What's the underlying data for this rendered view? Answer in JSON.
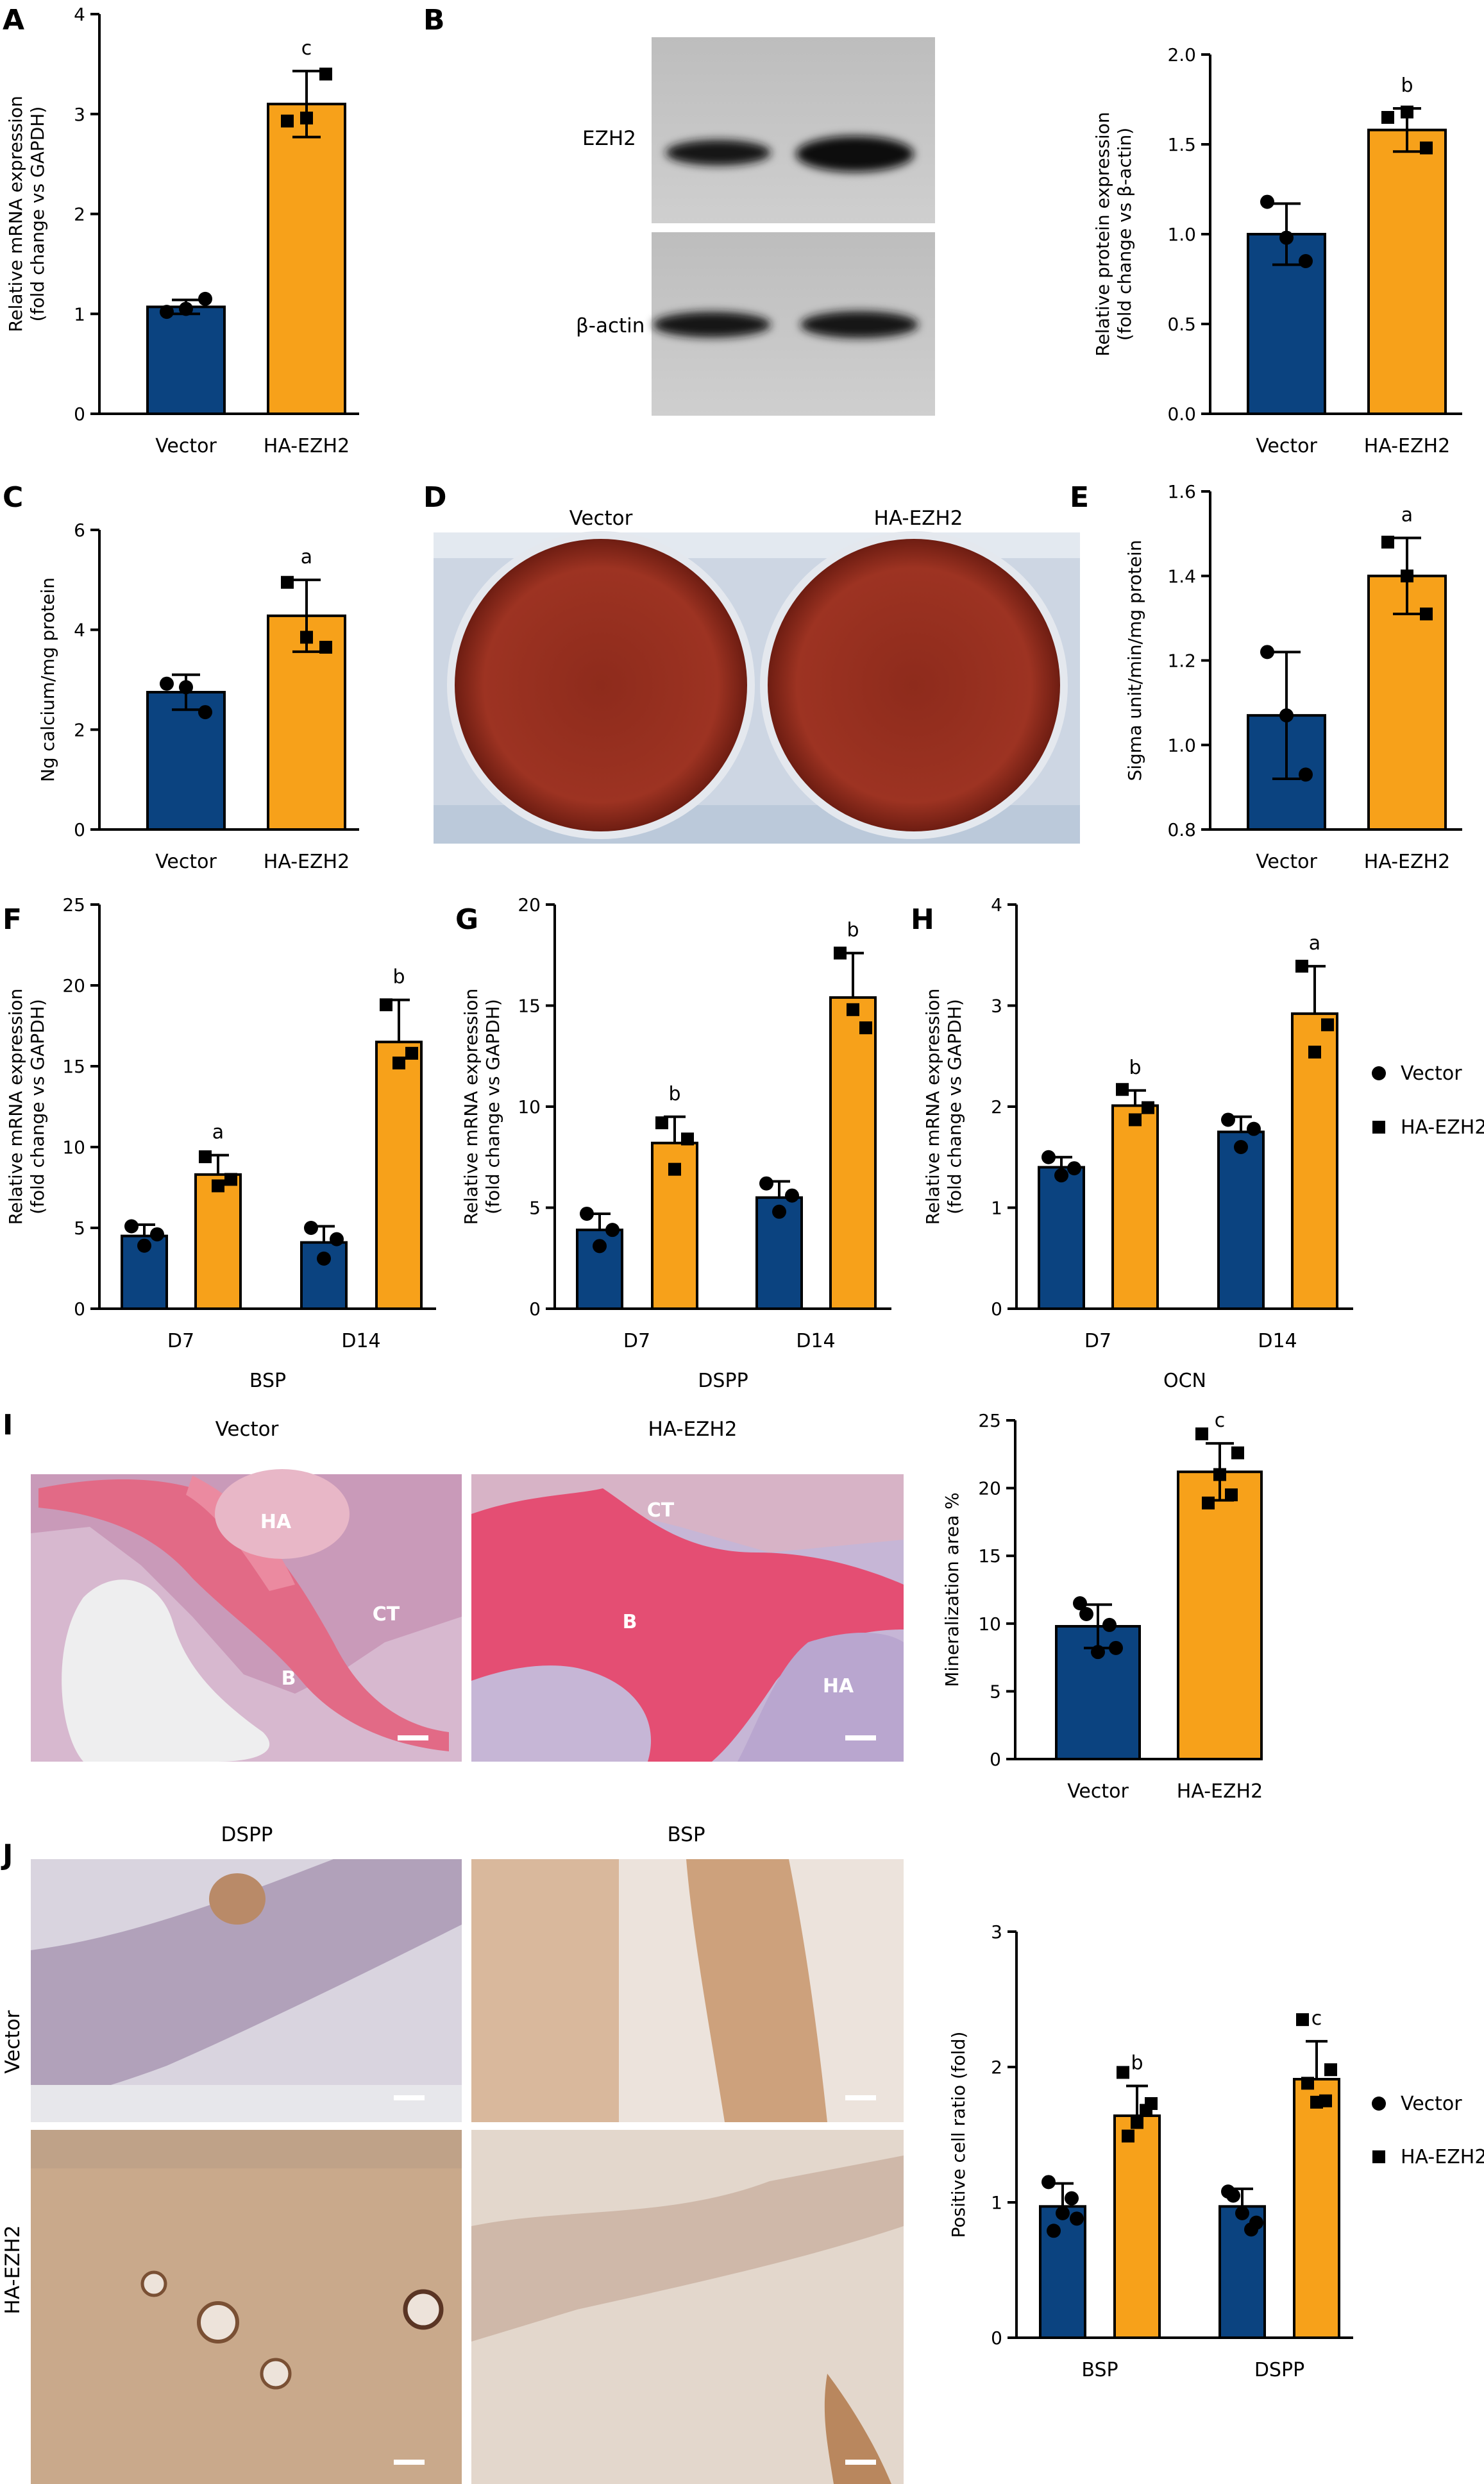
{
  "figure": {
    "labels": {
      "A": "A",
      "B": "B",
      "C": "C",
      "D": "D",
      "E": "E",
      "F": "F",
      "G": "G",
      "H": "H",
      "I": "I",
      "J": "J"
    },
    "legend_vector": "Vector",
    "legend_ha": "HA-EZH2",
    "blot": {
      "ezh2": "EZH2",
      "actin": "β-actin"
    },
    "plate": {
      "left": "Vector",
      "right": "HA-EZH2"
    },
    "histology": {
      "left": "Vector",
      "right": "HA-EZH2",
      "regions": [
        "HA",
        "CT",
        "B",
        "CT",
        "B",
        "HA"
      ]
    },
    "ihc": {
      "col1": "DSPP",
      "col2": "BSP",
      "row1": "Vector",
      "row2": "HA-EZH2"
    }
  },
  "colors": {
    "vector": "#0b4380",
    "ha_ezh2": "#f7a11a",
    "tissue_pink": "#e5566f",
    "stain_brown": "#b07a4a",
    "plate_red": "#9a2a1c",
    "blot_band": "#1c1c1c"
  },
  "chart_data": [
    {
      "id": "A",
      "type": "bar",
      "categories": [
        "Vector",
        "HA-EZH2"
      ],
      "values": [
        1.07,
        3.1
      ],
      "errors": [
        0.07,
        0.33
      ],
      "points": [
        [
          1.02,
          1.15,
          1.05
        ],
        [
          2.93,
          3.4,
          2.96
        ]
      ],
      "markers": [
        "circle",
        "square"
      ],
      "sig": [
        "",
        "c"
      ],
      "ylabel": "Relative mRNA expression",
      "ylabel2": "(fold change vs GAPDH)",
      "ylim": [
        0,
        4
      ],
      "yticks": [
        0,
        1,
        2,
        3,
        4
      ]
    },
    {
      "id": "B",
      "type": "bar",
      "categories": [
        "Vector",
        "HA-EZH2"
      ],
      "values": [
        1.0,
        1.58
      ],
      "errors": [
        0.17,
        0.12
      ],
      "points": [
        [
          1.18,
          0.85,
          0.98
        ],
        [
          1.65,
          1.48,
          1.68
        ]
      ],
      "markers": [
        "circle",
        "square"
      ],
      "sig": [
        "",
        "b"
      ],
      "ylabel": "Relative protein expression",
      "ylabel2": "(fold change vs β-actin)",
      "ylim": [
        0,
        2
      ],
      "yticks": [
        0.0,
        0.5,
        1.0,
        1.5,
        2.0
      ]
    },
    {
      "id": "C",
      "type": "bar",
      "categories": [
        "Vector",
        "HA-EZH2"
      ],
      "values": [
        2.75,
        4.28
      ],
      "errors": [
        0.35,
        0.72
      ],
      "points": [
        [
          2.92,
          2.35,
          2.85
        ],
        [
          4.95,
          3.65,
          3.85
        ]
      ],
      "markers": [
        "circle",
        "square"
      ],
      "sig": [
        "",
        "a"
      ],
      "ylabel": "Ng calcium/mg protein",
      "ylabel2": "",
      "ylim": [
        0,
        6
      ],
      "yticks": [
        0,
        2,
        4,
        6
      ]
    },
    {
      "id": "E",
      "type": "bar",
      "categories": [
        "Vector",
        "HA-EZH2"
      ],
      "values": [
        1.07,
        1.4
      ],
      "errors": [
        0.15,
        0.09
      ],
      "points": [
        [
          1.22,
          0.93,
          1.07
        ],
        [
          1.48,
          1.31,
          1.4
        ]
      ],
      "markers": [
        "circle",
        "square"
      ],
      "sig": [
        "",
        "a"
      ],
      "ylabel": "Sigma unit/min/mg protein",
      "ylabel2": "",
      "ylim": [
        0.8,
        1.6
      ],
      "yticks": [
        0.8,
        1.0,
        1.2,
        1.4,
        1.6
      ]
    },
    {
      "id": "F",
      "type": "bar",
      "categories": [
        "D7",
        "D14"
      ],
      "series": [
        {
          "values": [
            4.5,
            4.1
          ],
          "errors": [
            0.7,
            1.0
          ],
          "points": [
            [
              5.1,
              3.9,
              4.6
            ],
            [
              5.0,
              3.1,
              4.3
            ]
          ],
          "marker": "circle"
        },
        {
          "values": [
            8.3,
            16.5
          ],
          "errors": [
            1.2,
            2.6
          ],
          "points": [
            [
              9.4,
              7.6,
              8.0
            ],
            [
              18.8,
              15.2,
              15.8
            ]
          ],
          "marker": "square"
        }
      ],
      "sig": [
        "a",
        "b"
      ],
      "xlabel": "BSP",
      "ylabel": "Relative mRNA expression",
      "ylabel2": "(fold change vs GAPDH)",
      "ylim": [
        0,
        25
      ],
      "yticks": [
        0,
        5,
        10,
        15,
        20,
        25
      ]
    },
    {
      "id": "G",
      "type": "bar",
      "categories": [
        "D7",
        "D14"
      ],
      "series": [
        {
          "values": [
            3.9,
            5.5
          ],
          "errors": [
            0.8,
            0.8
          ],
          "points": [
            [
              4.7,
              3.1,
              3.9
            ],
            [
              6.2,
              4.8,
              5.6
            ]
          ],
          "marker": "circle"
        },
        {
          "values": [
            8.2,
            15.4
          ],
          "errors": [
            1.3,
            2.2
          ],
          "points": [
            [
              9.2,
              6.9,
              8.4
            ],
            [
              17.6,
              14.8,
              13.9
            ]
          ],
          "marker": "square"
        }
      ],
      "sig": [
        "b",
        "b"
      ],
      "xlabel": "DSPP",
      "ylabel": "Relative mRNA expression",
      "ylabel2": "(fold change vs GAPDH)",
      "ylim": [
        0,
        20
      ],
      "yticks": [
        0,
        5,
        10,
        15,
        20
      ]
    },
    {
      "id": "H",
      "type": "bar",
      "categories": [
        "D7",
        "D14"
      ],
      "series": [
        {
          "values": [
            1.4,
            1.75
          ],
          "errors": [
            0.1,
            0.15
          ],
          "points": [
            [
              1.5,
              1.32,
              1.39
            ],
            [
              1.87,
              1.6,
              1.78
            ]
          ],
          "marker": "circle"
        },
        {
          "values": [
            2.01,
            2.92
          ],
          "errors": [
            0.15,
            0.47
          ],
          "points": [
            [
              2.17,
              1.87,
              1.99
            ],
            [
              3.39,
              2.54,
              2.81
            ]
          ],
          "marker": "square"
        }
      ],
      "sig": [
        "b",
        "a"
      ],
      "xlabel": "OCN",
      "legend": [
        "Vector",
        "HA-EZH2"
      ],
      "ylabel": "Relative mRNA expression",
      "ylabel2": "(fold change vs GAPDH)",
      "ylim": [
        0,
        4
      ],
      "yticks": [
        0,
        1,
        2,
        3,
        4
      ]
    },
    {
      "id": "I",
      "type": "bar",
      "categories": [
        "Vector",
        "HA-EZH2"
      ],
      "values": [
        9.8,
        21.2
      ],
      "errors": [
        1.6,
        2.1
      ],
      "points": [
        [
          11.5,
          8.2,
          7.9,
          10.7,
          9.9
        ],
        [
          24.0,
          22.6,
          21.0,
          18.9,
          19.5
        ]
      ],
      "markers": [
        "circle",
        "square"
      ],
      "sig": [
        "",
        "c"
      ],
      "ylabel": "Mineralization area %",
      "ylabel2": "",
      "ylim": [
        0,
        25
      ],
      "yticks": [
        0,
        5,
        10,
        15,
        20,
        25
      ]
    },
    {
      "id": "J",
      "type": "bar",
      "categories": [
        "BSP",
        "DSPP"
      ],
      "series": [
        {
          "values": [
            0.97,
            0.97
          ],
          "errors": [
            0.17,
            0.13
          ],
          "points": [
            [
              1.15,
              0.88,
              0.92,
              0.79,
              1.03
            ],
            [
              1.08,
              0.85,
              0.92,
              1.05,
              0.8
            ]
          ],
          "marker": "circle"
        },
        {
          "values": [
            1.64,
            1.91
          ],
          "errors": [
            0.22,
            0.28
          ],
          "points": [
            [
              1.96,
              1.73,
              1.59,
              1.49,
              1.68
            ],
            [
              2.35,
              1.98,
              1.74,
              1.88,
              1.75
            ]
          ],
          "marker": "square"
        }
      ],
      "sig": [
        "b",
        "c"
      ],
      "legend": [
        "Vector",
        "HA-EZH2"
      ],
      "ylabel": "Positive cell ratio (fold)",
      "ylabel2": "",
      "ylim": [
        0,
        3
      ],
      "yticks": [
        0,
        1,
        2,
        3
      ]
    }
  ]
}
